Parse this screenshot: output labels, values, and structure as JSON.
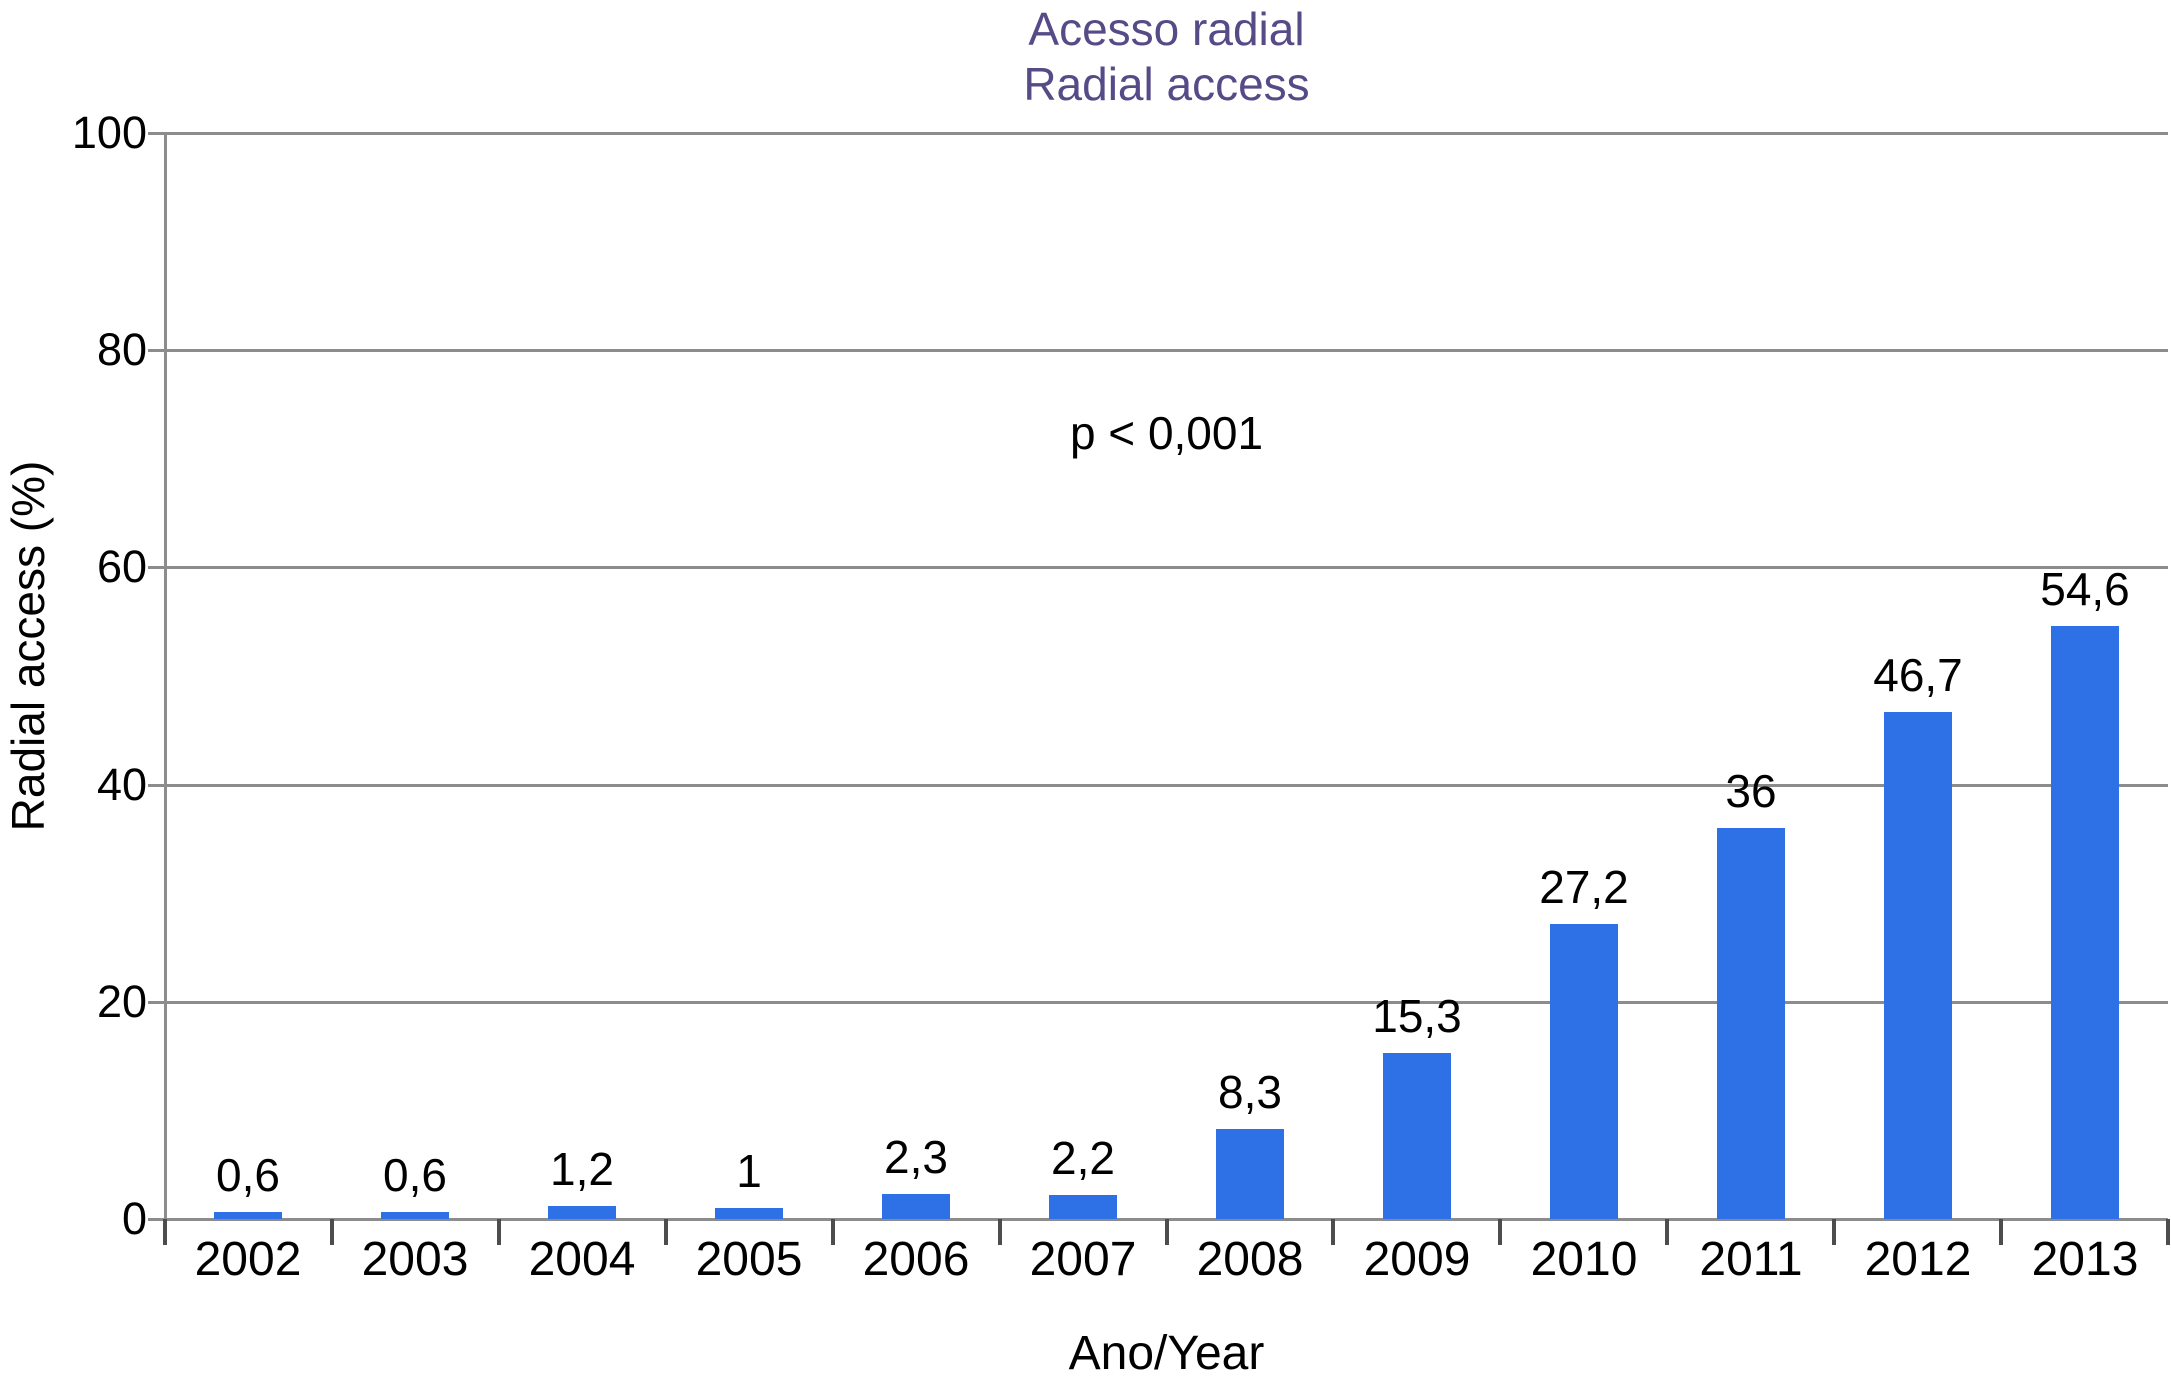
{
  "title": {
    "line1": "Acesso radial",
    "line2": "Radial access"
  },
  "annotation": "p < 0,001",
  "colors": {
    "bar": "#2e71e6",
    "title": "#564a87",
    "grid": "#8c8c8c",
    "tick": "#4d4d4d",
    "text": "#000000",
    "background": "#ffffff"
  },
  "chart_data": {
    "type": "bar",
    "title": "Acesso radial / Radial access",
    "xlabel": "Ano/Year",
    "ylabel": "Radial access (%)",
    "categories": [
      "2002",
      "2003",
      "2004",
      "2005",
      "2006",
      "2007",
      "2008",
      "2009",
      "2010",
      "2011",
      "2012",
      "2013"
    ],
    "values": [
      0.6,
      0.6,
      1.2,
      1,
      2.3,
      2.2,
      8.3,
      15.3,
      27.2,
      36,
      46.7,
      54.6
    ],
    "value_labels": [
      "0,6",
      "0,6",
      "1,2",
      "1",
      "2,3",
      "2,2",
      "8,3",
      "15,3",
      "27,2",
      "36",
      "46,7",
      "54,6"
    ],
    "ylim": [
      0,
      100
    ],
    "yticks": [
      0,
      20,
      40,
      60,
      80,
      100
    ],
    "grid": true,
    "legend": false,
    "decimal_separator": ","
  }
}
